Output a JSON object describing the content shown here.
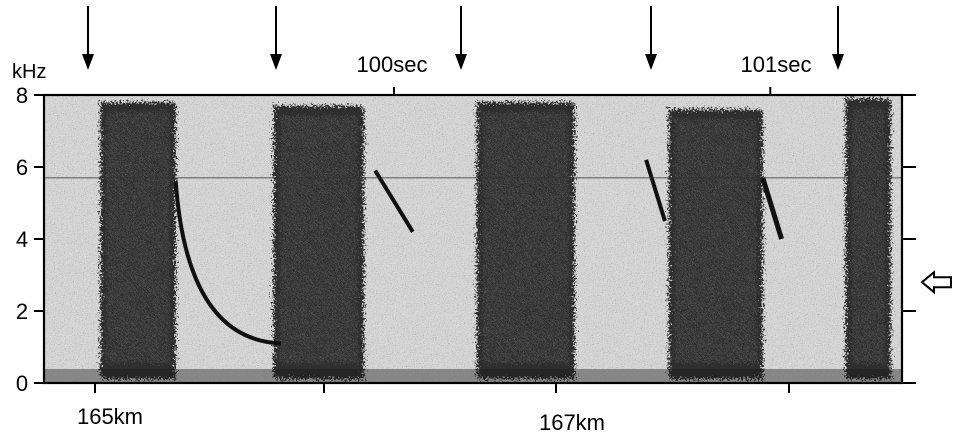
{
  "chart_data": {
    "type": "heatmap",
    "title": "",
    "y_unit_label": "kHz",
    "ylim": [
      0,
      8
    ],
    "y_ticks": [
      {
        "value": 0,
        "label": "0"
      },
      {
        "value": 2,
        "label": "2"
      },
      {
        "value": 4,
        "label": "4"
      },
      {
        "value": 6,
        "label": "6"
      },
      {
        "value": 8,
        "label": "8"
      }
    ],
    "time_axis_top": [
      {
        "value": 100,
        "label": "100sec"
      },
      {
        "value": 101,
        "label": "101sec"
      }
    ],
    "distance_axis_bottom": [
      {
        "value": 165,
        "label": "165km"
      },
      {
        "value": 167,
        "label": "167km"
      }
    ],
    "arrow_count_top": 5,
    "side_arrow_frequency_khz": 2.8,
    "bands": [
      {
        "t_start": 99.22,
        "t_end": 99.42,
        "f_top": 7.8
      },
      {
        "t_start": 99.68,
        "t_end": 99.92,
        "f_top": 7.7
      },
      {
        "t_start": 100.22,
        "t_end": 100.48,
        "f_top": 7.8
      },
      {
        "t_start": 100.73,
        "t_end": 100.98,
        "f_top": 7.6
      },
      {
        "t_start": 101.2,
        "t_end": 101.32,
        "f_top": 7.9
      }
    ],
    "palette": {
      "background": "#ffffff",
      "ink": "#000000",
      "noise": "#d8d8d8",
      "band": "#141414"
    }
  }
}
